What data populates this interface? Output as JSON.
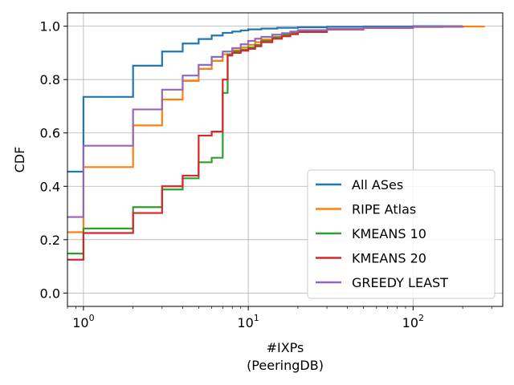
{
  "chart_data": {
    "type": "line",
    "step": true,
    "xscale": "log",
    "xlim": [
      0.8,
      350
    ],
    "ylim": [
      -0.05,
      1.05
    ],
    "xlabel": "#IXPs",
    "xlabel2": "(PeeringDB)",
    "ylabel": "CDF",
    "grid": true,
    "legend_position": "lower-right",
    "x_ticks": [
      {
        "value": 1,
        "base": "10",
        "exp": "0"
      },
      {
        "value": 10,
        "base": "10",
        "exp": "1"
      },
      {
        "value": 100,
        "base": "10",
        "exp": "2"
      }
    ],
    "y_ticks": [
      {
        "value": 0.0,
        "label": "0.0"
      },
      {
        "value": 0.2,
        "label": "0.2"
      },
      {
        "value": 0.4,
        "label": "0.4"
      },
      {
        "value": 0.6,
        "label": "0.6"
      },
      {
        "value": 0.8,
        "label": "0.8"
      },
      {
        "value": 1.0,
        "label": "1.0"
      }
    ],
    "series": [
      {
        "name": "All ASes",
        "color": "#1f77b4",
        "points": [
          [
            0.8,
            0.455
          ],
          [
            1,
            0.735
          ],
          [
            2,
            0.852
          ],
          [
            3,
            0.905
          ],
          [
            4,
            0.935
          ],
          [
            5,
            0.952
          ],
          [
            6,
            0.965
          ],
          [
            7,
            0.975
          ],
          [
            8,
            0.98
          ],
          [
            9,
            0.984
          ],
          [
            10,
            0.988
          ],
          [
            12,
            0.991
          ],
          [
            15,
            0.994
          ],
          [
            20,
            0.996
          ],
          [
            30,
            0.998
          ],
          [
            50,
            0.999
          ],
          [
            100,
            1.0
          ],
          [
            200,
            1.0
          ]
        ]
      },
      {
        "name": "RIPE Atlas",
        "color": "#ff7f0e",
        "points": [
          [
            0.8,
            0.228
          ],
          [
            1,
            0.472
          ],
          [
            2,
            0.628
          ],
          [
            3,
            0.725
          ],
          [
            4,
            0.795
          ],
          [
            5,
            0.84
          ],
          [
            6,
            0.87
          ],
          [
            7,
            0.895
          ],
          [
            8,
            0.91
          ],
          [
            9,
            0.92
          ],
          [
            10,
            0.93
          ],
          [
            11,
            0.94
          ],
          [
            12,
            0.95
          ],
          [
            14,
            0.96
          ],
          [
            16,
            0.968
          ],
          [
            18,
            0.974
          ],
          [
            20,
            0.98
          ],
          [
            30,
            0.988
          ],
          [
            50,
            0.993
          ],
          [
            100,
            0.997
          ],
          [
            150,
            0.999
          ],
          [
            270,
            1.0
          ]
        ]
      },
      {
        "name": "KMEANS 10",
        "color": "#2ca02c",
        "points": [
          [
            0.8,
            0.148
          ],
          [
            1,
            0.242
          ],
          [
            2,
            0.322
          ],
          [
            3,
            0.388
          ],
          [
            4,
            0.43
          ],
          [
            5,
            0.49
          ],
          [
            6,
            0.507
          ],
          [
            7,
            0.75
          ],
          [
            7.5,
            0.895
          ],
          [
            8,
            0.905
          ],
          [
            9,
            0.912
          ],
          [
            10,
            0.92
          ],
          [
            11,
            0.93
          ],
          [
            12,
            0.945
          ],
          [
            14,
            0.958
          ],
          [
            16,
            0.967
          ],
          [
            18,
            0.975
          ],
          [
            20,
            0.982
          ],
          [
            30,
            0.99
          ],
          [
            50,
            0.995
          ],
          [
            100,
            0.998
          ],
          [
            200,
            1.0
          ]
        ]
      },
      {
        "name": "KMEANS 20",
        "color": "#d62728",
        "points": [
          [
            0.8,
            0.125
          ],
          [
            1,
            0.225
          ],
          [
            2,
            0.3
          ],
          [
            3,
            0.4
          ],
          [
            4,
            0.44
          ],
          [
            5,
            0.59
          ],
          [
            6,
            0.605
          ],
          [
            7,
            0.8
          ],
          [
            7.5,
            0.89
          ],
          [
            8,
            0.9
          ],
          [
            9,
            0.908
          ],
          [
            10,
            0.915
          ],
          [
            11,
            0.925
          ],
          [
            12,
            0.94
          ],
          [
            14,
            0.953
          ],
          [
            16,
            0.962
          ],
          [
            18,
            0.97
          ],
          [
            20,
            0.978
          ],
          [
            30,
            0.988
          ],
          [
            50,
            0.994
          ],
          [
            100,
            0.998
          ],
          [
            200,
            1.0
          ]
        ]
      },
      {
        "name": "GREEDY LEAST",
        "color": "#9467bd",
        "points": [
          [
            0.8,
            0.285
          ],
          [
            1,
            0.552
          ],
          [
            2,
            0.688
          ],
          [
            3,
            0.762
          ],
          [
            4,
            0.815
          ],
          [
            5,
            0.855
          ],
          [
            6,
            0.885
          ],
          [
            7,
            0.905
          ],
          [
            8,
            0.918
          ],
          [
            9,
            0.932
          ],
          [
            10,
            0.945
          ],
          [
            11,
            0.953
          ],
          [
            12,
            0.96
          ],
          [
            14,
            0.968
          ],
          [
            16,
            0.974
          ],
          [
            18,
            0.98
          ],
          [
            20,
            0.985
          ],
          [
            30,
            0.99
          ],
          [
            50,
            0.994
          ],
          [
            100,
            0.998
          ],
          [
            200,
            1.0
          ]
        ]
      }
    ]
  }
}
